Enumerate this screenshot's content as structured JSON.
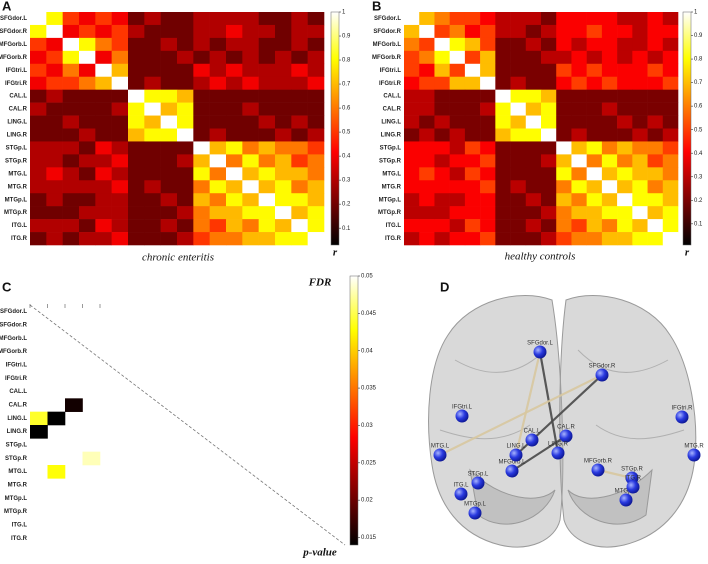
{
  "chart_data": [
    {
      "type": "heatmap",
      "panel": "A",
      "caption": "chronic enteritis",
      "colorbar_label": "r",
      "colormap": "hot",
      "labels": [
        "SFGdor.L",
        "SFGdor.R",
        "MFGorb.L",
        "MFGorb.R",
        "IFGtri.L",
        "IFGtri.R",
        "CAL.L",
        "CAL.R",
        "LING.L",
        "LING.R",
        "STGp.L",
        "STGp.R",
        "MTG.L",
        "MTG.R",
        "MTGp.L",
        "MTGp.R",
        "ITG.L",
        "ITG.R"
      ],
      "values": [
        [
          1,
          0.8,
          0.5,
          0.4,
          0.5,
          0.4,
          0.2,
          0.3,
          0.2,
          0.2,
          0.3,
          0.3,
          0.3,
          0.3,
          0.2,
          0.2,
          0.3,
          0.2
        ],
        [
          0.8,
          1,
          0.4,
          0.5,
          0.4,
          0.5,
          0.3,
          0.2,
          0.2,
          0.2,
          0.3,
          0.3,
          0.4,
          0.3,
          0.3,
          0.2,
          0.3,
          0.3
        ],
        [
          0.5,
          0.4,
          1,
          0.8,
          0.6,
          0.5,
          0.2,
          0.2,
          0.3,
          0.2,
          0.3,
          0.2,
          0.3,
          0.3,
          0.2,
          0.2,
          0.3,
          0.2
        ],
        [
          0.4,
          0.5,
          0.8,
          1,
          0.4,
          0.6,
          0.2,
          0.2,
          0.2,
          0.3,
          0.2,
          0.3,
          0.2,
          0.3,
          0.2,
          0.3,
          0.2,
          0.3
        ],
        [
          0.5,
          0.4,
          0.6,
          0.4,
          1,
          0.7,
          0.2,
          0.2,
          0.2,
          0.2,
          0.4,
          0.3,
          0.4,
          0.3,
          0.3,
          0.3,
          0.4,
          0.3
        ],
        [
          0.4,
          0.5,
          0.5,
          0.6,
          0.7,
          1,
          0.2,
          0.3,
          0.2,
          0.2,
          0.3,
          0.4,
          0.3,
          0.4,
          0.3,
          0.3,
          0.3,
          0.4
        ],
        [
          0.2,
          0.3,
          0.2,
          0.2,
          0.2,
          0.2,
          1,
          0.8,
          0.8,
          0.7,
          0.2,
          0.2,
          0.2,
          0.2,
          0.2,
          0.2,
          0.2,
          0.2
        ],
        [
          0.3,
          0.2,
          0.2,
          0.2,
          0.2,
          0.3,
          0.8,
          1,
          0.7,
          0.8,
          0.2,
          0.2,
          0.2,
          0.3,
          0.2,
          0.2,
          0.2,
          0.2
        ],
        [
          0.2,
          0.2,
          0.3,
          0.2,
          0.2,
          0.2,
          0.8,
          0.7,
          1,
          0.8,
          0.2,
          0.2,
          0.2,
          0.2,
          0.3,
          0.2,
          0.3,
          0.2
        ],
        [
          0.2,
          0.2,
          0.2,
          0.3,
          0.2,
          0.2,
          0.7,
          0.8,
          0.8,
          1,
          0.2,
          0.3,
          0.2,
          0.2,
          0.2,
          0.3,
          0.2,
          0.3
        ],
        [
          0.3,
          0.3,
          0.3,
          0.2,
          0.4,
          0.3,
          0.2,
          0.2,
          0.2,
          0.2,
          1,
          0.7,
          0.8,
          0.6,
          0.7,
          0.6,
          0.6,
          0.5
        ],
        [
          0.3,
          0.3,
          0.2,
          0.3,
          0.3,
          0.4,
          0.2,
          0.2,
          0.2,
          0.3,
          0.7,
          1,
          0.6,
          0.8,
          0.6,
          0.7,
          0.5,
          0.6
        ],
        [
          0.3,
          0.4,
          0.3,
          0.2,
          0.4,
          0.3,
          0.2,
          0.2,
          0.2,
          0.2,
          0.8,
          0.6,
          1,
          0.7,
          0.8,
          0.7,
          0.7,
          0.6
        ],
        [
          0.3,
          0.3,
          0.3,
          0.3,
          0.3,
          0.4,
          0.2,
          0.3,
          0.2,
          0.2,
          0.6,
          0.8,
          0.7,
          1,
          0.7,
          0.8,
          0.6,
          0.7
        ],
        [
          0.2,
          0.3,
          0.2,
          0.2,
          0.3,
          0.3,
          0.2,
          0.2,
          0.3,
          0.2,
          0.7,
          0.6,
          0.8,
          0.7,
          1,
          0.8,
          0.8,
          0.7
        ],
        [
          0.2,
          0.2,
          0.2,
          0.3,
          0.3,
          0.3,
          0.2,
          0.2,
          0.2,
          0.3,
          0.6,
          0.7,
          0.7,
          0.8,
          0.8,
          1,
          0.7,
          0.8
        ],
        [
          0.3,
          0.3,
          0.3,
          0.2,
          0.4,
          0.3,
          0.2,
          0.2,
          0.3,
          0.2,
          0.6,
          0.5,
          0.7,
          0.6,
          0.8,
          0.7,
          1,
          0.8
        ],
        [
          0.2,
          0.3,
          0.2,
          0.3,
          0.3,
          0.4,
          0.2,
          0.2,
          0.2,
          0.3,
          0.5,
          0.6,
          0.6,
          0.7,
          0.7,
          0.8,
          0.8,
          1
        ]
      ],
      "zlim": [
        0.03,
        1
      ],
      "zticks": [
        0.1,
        0.2,
        0.3,
        0.4,
        0.5,
        0.6,
        0.7,
        0.8,
        0.9,
        1
      ]
    },
    {
      "type": "heatmap",
      "panel": "B",
      "caption": "healthy controls",
      "colorbar_label": "r",
      "colormap": "hot",
      "labels": [
        "SFGdor.L",
        "SFGdor.R",
        "MFGorb.L",
        "MFGorb.R",
        "IFGtri.L",
        "IFGtri.R",
        "CAL.L",
        "CAL.R",
        "LING.L",
        "LING.R",
        "STGp.L",
        "STGp.R",
        "MTG.L",
        "MTG.R",
        "MTGp.L",
        "MTGp.R",
        "ITG.L",
        "ITG.R"
      ],
      "values": [
        [
          1,
          0.7,
          0.6,
          0.5,
          0.5,
          0.4,
          0.3,
          0.3,
          0.3,
          0.2,
          0.4,
          0.4,
          0.4,
          0.4,
          0.3,
          0.3,
          0.4,
          0.3
        ],
        [
          0.7,
          1,
          0.5,
          0.6,
          0.4,
          0.5,
          0.3,
          0.3,
          0.2,
          0.3,
          0.4,
          0.4,
          0.5,
          0.4,
          0.4,
          0.3,
          0.4,
          0.4
        ],
        [
          0.6,
          0.5,
          1,
          0.8,
          0.7,
          0.5,
          0.2,
          0.2,
          0.3,
          0.2,
          0.4,
          0.3,
          0.4,
          0.4,
          0.3,
          0.3,
          0.4,
          0.3
        ],
        [
          0.5,
          0.6,
          0.8,
          1,
          0.5,
          0.7,
          0.2,
          0.2,
          0.2,
          0.3,
          0.3,
          0.4,
          0.3,
          0.4,
          0.3,
          0.4,
          0.3,
          0.4
        ],
        [
          0.5,
          0.4,
          0.7,
          0.5,
          1,
          0.7,
          0.2,
          0.2,
          0.2,
          0.2,
          0.5,
          0.4,
          0.5,
          0.4,
          0.4,
          0.4,
          0.5,
          0.4
        ],
        [
          0.4,
          0.5,
          0.5,
          0.7,
          0.7,
          1,
          0.2,
          0.3,
          0.2,
          0.2,
          0.4,
          0.5,
          0.4,
          0.5,
          0.4,
          0.4,
          0.4,
          0.5
        ],
        [
          0.3,
          0.3,
          0.2,
          0.2,
          0.2,
          0.2,
          1,
          0.8,
          0.8,
          0.7,
          0.2,
          0.2,
          0.2,
          0.2,
          0.2,
          0.2,
          0.2,
          0.2
        ],
        [
          0.3,
          0.3,
          0.2,
          0.2,
          0.2,
          0.3,
          0.8,
          1,
          0.7,
          0.8,
          0.2,
          0.2,
          0.2,
          0.3,
          0.2,
          0.2,
          0.2,
          0.2
        ],
        [
          0.3,
          0.2,
          0.3,
          0.2,
          0.2,
          0.2,
          0.8,
          0.7,
          1,
          0.8,
          0.2,
          0.2,
          0.2,
          0.2,
          0.3,
          0.2,
          0.3,
          0.2
        ],
        [
          0.2,
          0.3,
          0.2,
          0.3,
          0.2,
          0.2,
          0.7,
          0.8,
          0.8,
          1,
          0.2,
          0.3,
          0.2,
          0.2,
          0.2,
          0.3,
          0.2,
          0.3
        ],
        [
          0.4,
          0.4,
          0.4,
          0.3,
          0.5,
          0.4,
          0.2,
          0.2,
          0.2,
          0.2,
          1,
          0.7,
          0.8,
          0.6,
          0.7,
          0.6,
          0.6,
          0.5
        ],
        [
          0.4,
          0.4,
          0.3,
          0.4,
          0.4,
          0.5,
          0.2,
          0.2,
          0.2,
          0.3,
          0.7,
          1,
          0.6,
          0.8,
          0.6,
          0.7,
          0.5,
          0.6
        ],
        [
          0.4,
          0.5,
          0.4,
          0.3,
          0.5,
          0.4,
          0.2,
          0.2,
          0.2,
          0.2,
          0.8,
          0.6,
          1,
          0.7,
          0.8,
          0.7,
          0.7,
          0.6
        ],
        [
          0.4,
          0.4,
          0.4,
          0.4,
          0.4,
          0.5,
          0.2,
          0.3,
          0.2,
          0.2,
          0.6,
          0.8,
          0.7,
          1,
          0.7,
          0.8,
          0.6,
          0.7
        ],
        [
          0.3,
          0.4,
          0.3,
          0.3,
          0.4,
          0.4,
          0.2,
          0.2,
          0.3,
          0.2,
          0.7,
          0.6,
          0.8,
          0.7,
          1,
          0.8,
          0.8,
          0.7
        ],
        [
          0.3,
          0.3,
          0.3,
          0.4,
          0.4,
          0.4,
          0.2,
          0.2,
          0.2,
          0.3,
          0.6,
          0.7,
          0.7,
          0.8,
          0.8,
          1,
          0.7,
          0.8
        ],
        [
          0.4,
          0.4,
          0.4,
          0.3,
          0.5,
          0.4,
          0.2,
          0.2,
          0.3,
          0.2,
          0.6,
          0.5,
          0.7,
          0.6,
          0.8,
          0.7,
          1,
          0.8
        ],
        [
          0.3,
          0.4,
          0.3,
          0.4,
          0.4,
          0.5,
          0.2,
          0.2,
          0.2,
          0.3,
          0.5,
          0.6,
          0.6,
          0.7,
          0.7,
          0.8,
          0.8,
          1
        ]
      ],
      "zlim": [
        0.01,
        1
      ],
      "zticks": [
        0.1,
        0.2,
        0.3,
        0.4,
        0.5,
        0.6,
        0.7,
        0.8,
        0.9,
        1
      ]
    },
    {
      "type": "heatmap",
      "panel": "C",
      "colorbar_title": "FDR",
      "colorbar_label": "p-value",
      "colormap": "hot",
      "diagonal_line": true,
      "labels": [
        "SFGdor.L",
        "SFGdor.R",
        "MFGorb.L",
        "MFGorb.R",
        "IFGtri.L",
        "IFGtri.R",
        "CAL.L",
        "CAL.R",
        "LING.L",
        "LING.R",
        "STGp.L",
        "STGp.R",
        "MTG.L",
        "MTG.R",
        "MTGp.L",
        "MTGp.R",
        "ITG.L",
        "ITG.R"
      ],
      "values": [
        [
          null,
          null,
          null,
          null,
          null,
          null,
          null,
          null,
          null,
          null,
          null,
          null,
          null,
          null,
          null,
          null,
          null,
          null
        ],
        [
          null,
          null,
          null,
          null,
          null,
          null,
          null,
          null,
          null,
          null,
          null,
          null,
          null,
          null,
          null,
          null,
          null,
          null
        ],
        [
          null,
          null,
          null,
          null,
          null,
          null,
          null,
          null,
          null,
          null,
          null,
          null,
          null,
          null,
          null,
          null,
          null,
          null
        ],
        [
          null,
          null,
          null,
          null,
          null,
          null,
          null,
          null,
          null,
          null,
          null,
          null,
          null,
          null,
          null,
          null,
          null,
          null
        ],
        [
          null,
          null,
          null,
          null,
          null,
          null,
          null,
          null,
          null,
          null,
          null,
          null,
          null,
          null,
          null,
          null,
          null,
          null
        ],
        [
          null,
          null,
          null,
          null,
          null,
          null,
          null,
          null,
          null,
          null,
          null,
          null,
          null,
          null,
          null,
          null,
          null,
          null
        ],
        [
          null,
          null,
          null,
          null,
          null,
          null,
          null,
          null,
          null,
          null,
          null,
          null,
          null,
          null,
          null,
          null,
          null,
          null
        ],
        [
          null,
          null,
          0.015,
          null,
          null,
          null,
          null,
          null,
          null,
          null,
          null,
          null,
          null,
          null,
          null,
          null,
          null,
          null
        ],
        [
          0.044,
          0.014,
          null,
          null,
          null,
          null,
          null,
          null,
          null,
          null,
          null,
          null,
          null,
          null,
          null,
          null,
          null,
          null
        ],
        [
          0.014,
          null,
          null,
          null,
          null,
          null,
          null,
          null,
          null,
          null,
          null,
          null,
          null,
          null,
          null,
          null,
          null,
          null
        ],
        [
          null,
          null,
          null,
          null,
          null,
          null,
          null,
          null,
          null,
          null,
          null,
          null,
          null,
          null,
          null,
          null,
          null,
          null
        ],
        [
          null,
          null,
          null,
          0.048,
          null,
          null,
          null,
          null,
          null,
          null,
          null,
          null,
          null,
          null,
          null,
          null,
          null,
          null
        ],
        [
          null,
          0.043,
          null,
          null,
          null,
          null,
          null,
          null,
          null,
          null,
          null,
          null,
          null,
          null,
          null,
          null,
          null,
          null
        ],
        [
          null,
          null,
          null,
          null,
          null,
          null,
          null,
          null,
          null,
          null,
          null,
          null,
          null,
          null,
          null,
          null,
          null,
          null
        ],
        [
          null,
          null,
          null,
          null,
          null,
          null,
          null,
          null,
          null,
          null,
          null,
          null,
          null,
          null,
          null,
          null,
          null,
          null
        ],
        [
          null,
          null,
          null,
          null,
          null,
          null,
          null,
          null,
          null,
          null,
          null,
          null,
          null,
          null,
          null,
          null,
          null,
          null
        ],
        [
          null,
          null,
          null,
          null,
          null,
          null,
          null,
          null,
          null,
          null,
          null,
          null,
          null,
          null,
          null,
          null,
          null,
          null
        ],
        [
          null,
          null,
          null,
          null,
          null,
          null,
          null,
          null,
          null,
          null,
          null,
          null,
          null,
          null,
          null,
          null,
          null,
          null
        ]
      ],
      "zlim": [
        0.014,
        0.05
      ],
      "zticks": [
        0.015,
        0.02,
        0.025,
        0.03,
        0.035,
        0.04,
        0.045,
        0.05
      ]
    }
  ],
  "brain_network": {
    "panel": "D",
    "nodes": [
      "SFGdor.L",
      "SFGdor.R",
      "MFGorb.L",
      "MFGorb.R",
      "IFGtri.L",
      "IFGtri.R",
      "CAL.L",
      "CAL.R",
      "LING.L",
      "LING.R",
      "STGp.L",
      "STGp.R",
      "MTG.L",
      "MTG.R",
      "MTGp.L",
      "MTGp.R",
      "ITG.L",
      "ITG.R"
    ]
  }
}
